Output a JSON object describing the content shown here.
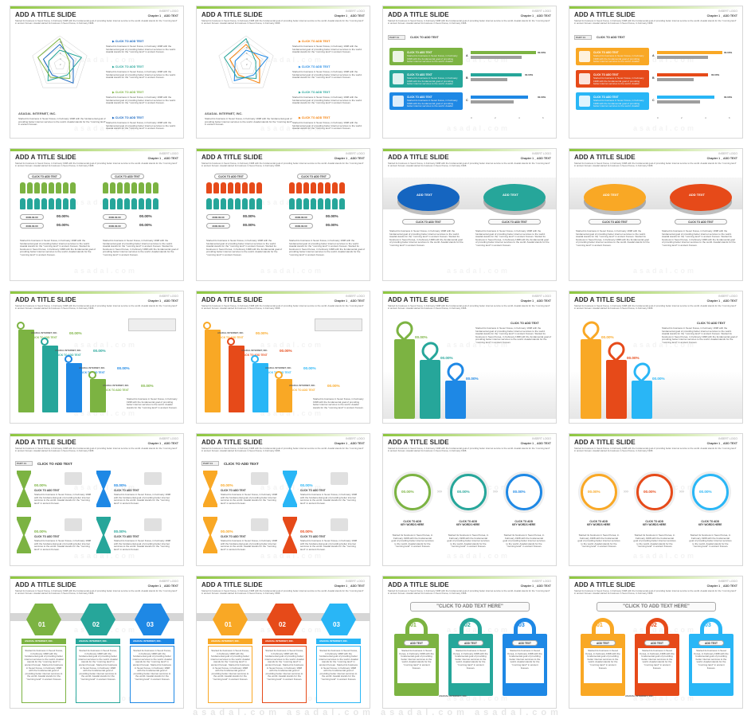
{
  "common": {
    "title": "ADD A TITLE SLIDE",
    "logo": "INSERT LOGO",
    "chapter": "Chapter 1 _ ADD TEXT",
    "subtitle": "Started its business in Seoul Korea, in February 1998 with the fundamental goal of providing better internet service to the world. Asadal stands for the \"morning land\" in ancient Korean. Asadal started its business in Seoul Korea, in February 1998.",
    "watermark": "asadal.com",
    "click_to_add_text": "CLICK TO ADD TEXT",
    "add_text": "ADD TEXT",
    "company": "ASADAL INTERNET, INC.",
    "pct": "00.00%",
    "pct_bar": "00.00%",
    "part": "PART 01",
    "body": "Started its business in Seoul Korea, in February 1998 with the fundamental goal of providing better internet services to the world. Asadal stands for the \"morning land\" in ancient Korean.",
    "year": "2000.00.00",
    "click_here": "\"CLICK TO ADD TEXT HERE\"",
    "key_words": "CLICK TO ADD\nKEY WORDS HERE",
    "nums": [
      "01",
      "02",
      "03"
    ],
    "radar_ticks": [
      "10",
      "8",
      "6",
      "4",
      "2"
    ],
    "bar_labels": [
      "A",
      "B",
      "C"
    ],
    "bar_values": [
      "00.00%",
      "00.00%",
      "00.00%"
    ],
    "x_ticks": [
      "0",
      "2",
      "4",
      "6"
    ]
  },
  "bottom_watermark": "asadal.com   asadal.com   asadal.com   asadal.com",
  "slides": [
    {
      "kind": "radar",
      "variant": "blue"
    },
    {
      "kind": "radar",
      "variant": "multi"
    },
    {
      "kind": "hbar",
      "variant": "green"
    },
    {
      "kind": "hbar",
      "variant": "warm"
    },
    {
      "kind": "people",
      "variant": "green"
    },
    {
      "kind": "people",
      "variant": "orange"
    },
    {
      "kind": "discs",
      "variant": "blue"
    },
    {
      "kind": "discs",
      "variant": "warm"
    },
    {
      "kind": "arrows",
      "variant": "green"
    },
    {
      "kind": "arrows",
      "variant": "warm"
    },
    {
      "kind": "cubes",
      "variant": "green"
    },
    {
      "kind": "cubes",
      "variant": "warm"
    },
    {
      "kind": "hourglass",
      "variant": "green"
    },
    {
      "kind": "hourglass",
      "variant": "warm"
    },
    {
      "kind": "circles",
      "variant": "green"
    },
    {
      "kind": "circles",
      "variant": "warm"
    },
    {
      "kind": "hex",
      "variant": "green"
    },
    {
      "kind": "hex",
      "variant": "warm"
    },
    {
      "kind": "locks",
      "variant": "green"
    },
    {
      "kind": "locks",
      "variant": "warm"
    }
  ],
  "colors": {
    "green": [
      "#7cb342",
      "#26a69a",
      "#1e88e5"
    ],
    "blue": [
      "#1565c0",
      "#26a69a",
      "#7cb342"
    ],
    "multi": [
      "#f57c00",
      "#1e88e5",
      "#26a69a"
    ],
    "warm": [
      "#f9a825",
      "#e64a19",
      "#29b6f6"
    ],
    "orange": [
      "#e64a19",
      "#26a69a",
      "#f9a825"
    ]
  }
}
